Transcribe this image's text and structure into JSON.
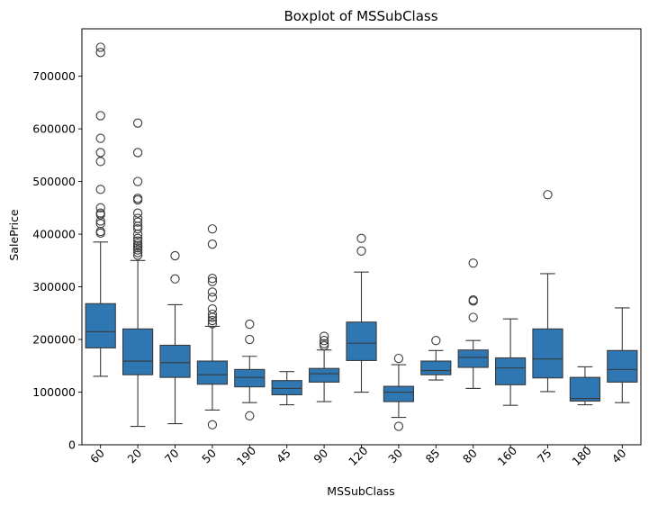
{
  "chart_data": {
    "type": "boxplot",
    "title": "Boxplot of MSSubClass",
    "xlabel": "MSSubClass",
    "ylabel": "SalePrice",
    "ylim": [
      0,
      790000
    ],
    "yticks": [
      0,
      100000,
      200000,
      300000,
      400000,
      500000,
      600000,
      700000
    ],
    "ytick_labels": [
      "0",
      "100000",
      "200000",
      "300000",
      "400000",
      "500000",
      "600000",
      "700000"
    ],
    "grid": false,
    "box_color": "#2e77b2",
    "line_color": "#3a3a3a",
    "categories": [
      "60",
      "20",
      "70",
      "50",
      "190",
      "45",
      "90",
      "120",
      "30",
      "85",
      "80",
      "160",
      "75",
      "180",
      "40"
    ],
    "boxes": [
      {
        "q1": 184000,
        "median": 215000,
        "q3": 268000,
        "whisker_low": 130000,
        "whisker_high": 385000,
        "outliers": [
          755000,
          745000,
          625000,
          582000,
          555000,
          538000,
          485000,
          450000,
          440000,
          437000,
          425000,
          420000,
          405000,
          402000
        ]
      },
      {
        "q1": 133000,
        "median": 159000,
        "q3": 220000,
        "whisker_low": 35000,
        "whisker_high": 350000,
        "outliers": [
          611000,
          555000,
          500000,
          468000,
          465000,
          440000,
          430000,
          423000,
          415000,
          410000,
          400000,
          392000,
          387000,
          382000,
          378000,
          374000,
          370000,
          365000,
          360000
        ]
      },
      {
        "q1": 128000,
        "median": 156000,
        "q3": 189000,
        "whisker_low": 40000,
        "whisker_high": 266000,
        "outliers": [
          359000,
          315000
        ]
      },
      {
        "q1": 115000,
        "median": 133000,
        "q3": 159000,
        "whisker_low": 66000,
        "whisker_high": 225000,
        "outliers": [
          410000,
          381000,
          316000,
          310000,
          290000,
          280000,
          258000,
          248000,
          242000,
          236000,
          230000,
          38000
        ]
      },
      {
        "q1": 110000,
        "median": 128000,
        "q3": 143000,
        "whisker_low": 80000,
        "whisker_high": 168000,
        "outliers": [
          229000,
          200000,
          55000
        ]
      },
      {
        "q1": 95000,
        "median": 107000,
        "q3": 122000,
        "whisker_low": 76000,
        "whisker_high": 139000,
        "outliers": []
      },
      {
        "q1": 119000,
        "median": 135000,
        "q3": 145000,
        "whisker_low": 82000,
        "whisker_high": 180000,
        "outliers": [
          206000,
          198000,
          192000,
          188000
        ]
      },
      {
        "q1": 160000,
        "median": 193000,
        "q3": 233000,
        "whisker_low": 100000,
        "whisker_high": 328000,
        "outliers": [
          392000,
          368000
        ]
      },
      {
        "q1": 82000,
        "median": 100000,
        "q3": 111000,
        "whisker_low": 52000,
        "whisker_high": 152000,
        "outliers": [
          164000,
          35000
        ]
      },
      {
        "q1": 133000,
        "median": 141000,
        "q3": 159000,
        "whisker_low": 123000,
        "whisker_high": 179000,
        "outliers": [
          198000
        ]
      },
      {
        "q1": 147000,
        "median": 166000,
        "q3": 180000,
        "whisker_low": 107000,
        "whisker_high": 198000,
        "outliers": [
          345000,
          275000,
          273000,
          242000
        ]
      },
      {
        "q1": 114000,
        "median": 146000,
        "q3": 165000,
        "whisker_low": 75000,
        "whisker_high": 239000,
        "outliers": []
      },
      {
        "q1": 127000,
        "median": 163000,
        "q3": 220000,
        "whisker_low": 101000,
        "whisker_high": 325000,
        "outliers": [
          475000
        ]
      },
      {
        "q1": 83000,
        "median": 88000,
        "q3": 128000,
        "whisker_low": 76000,
        "whisker_high": 148000,
        "outliers": []
      },
      {
        "q1": 119000,
        "median": 143000,
        "q3": 179000,
        "whisker_low": 80000,
        "whisker_high": 260000,
        "outliers": []
      }
    ]
  }
}
